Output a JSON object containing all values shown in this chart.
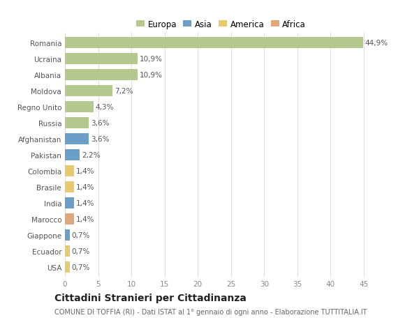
{
  "countries": [
    "Romania",
    "Ucraina",
    "Albania",
    "Moldova",
    "Regno Unito",
    "Russia",
    "Afghanistan",
    "Pakistan",
    "Colombia",
    "Brasile",
    "India",
    "Marocco",
    "Giappone",
    "Ecuador",
    "USA"
  ],
  "values": [
    44.9,
    10.9,
    10.9,
    7.2,
    4.3,
    3.6,
    3.6,
    2.2,
    1.4,
    1.4,
    1.4,
    1.4,
    0.7,
    0.7,
    0.7
  ],
  "labels": [
    "44,9%",
    "10,9%",
    "10,9%",
    "7,2%",
    "4,3%",
    "3,6%",
    "3,6%",
    "2,2%",
    "1,4%",
    "1,4%",
    "1,4%",
    "1,4%",
    "0,7%",
    "0,7%",
    "0,7%"
  ],
  "continents": [
    "Europa",
    "Europa",
    "Europa",
    "Europa",
    "Europa",
    "Europa",
    "Asia",
    "Asia",
    "America",
    "America",
    "Asia",
    "Africa",
    "Asia",
    "America",
    "America"
  ],
  "continent_colors": {
    "Europa": "#b5c98e",
    "Asia": "#6b9ec8",
    "America": "#e8c96e",
    "Africa": "#e0a878"
  },
  "legend_entries": [
    "Europa",
    "Asia",
    "America",
    "Africa"
  ],
  "legend_colors": [
    "#b5c98e",
    "#6b9ec8",
    "#e8c96e",
    "#e0a878"
  ],
  "title": "Cittadini Stranieri per Cittadinanza",
  "subtitle": "COMUNE DI TOFFIA (RI) - Dati ISTAT al 1° gennaio di ogni anno - Elaborazione TUTTITALIA.IT",
  "xlim": [
    0,
    47
  ],
  "xticks": [
    0,
    5,
    10,
    15,
    20,
    25,
    30,
    35,
    40,
    45
  ],
  "background_color": "#ffffff",
  "plot_bg_color": "#ffffff",
  "grid_color": "#dddddd",
  "bar_height": 0.72,
  "label_fontsize": 7.5,
  "tick_fontsize": 7.5,
  "title_fontsize": 10,
  "subtitle_fontsize": 7
}
